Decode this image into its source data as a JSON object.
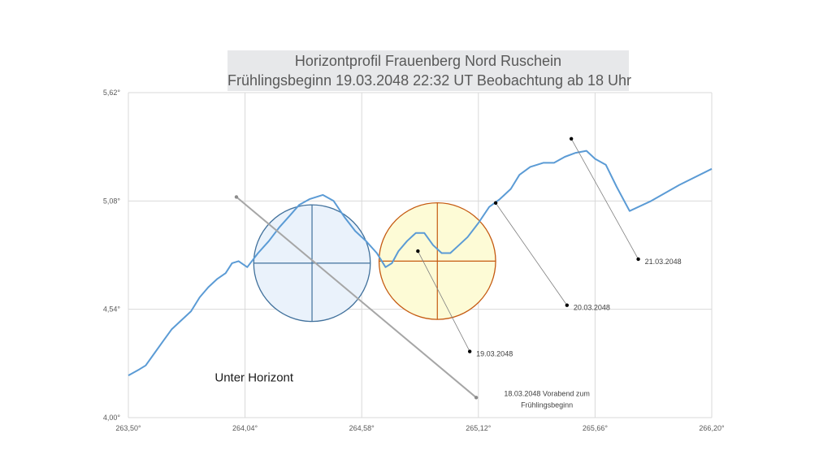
{
  "chart_data": {
    "type": "line",
    "title": "Horizontprofil Frauenberg Nord Ruschein",
    "subtitle": "Frühlingsbeginn 19.03.2048   22:32 UT Beobachtung ab 18 Uhr",
    "xlabel": "",
    "ylabel": "",
    "xlim": [
      263.5,
      266.2
    ],
    "ylim": [
      4.0,
      5.62
    ],
    "x_ticks": [
      "263,50°",
      "264,04°",
      "264,58°",
      "265,12°",
      "265,66°",
      "266,20°"
    ],
    "y_ticks": [
      "4,00°",
      "4,54°",
      "5,08°",
      "5,62°"
    ],
    "x_tick_values": [
      263.5,
      264.04,
      264.58,
      265.12,
      265.66,
      266.2
    ],
    "y_tick_values": [
      4.0,
      4.54,
      5.08,
      5.62
    ],
    "grid": true,
    "legend": "none",
    "colors": {
      "horizon": "#5b9bd5",
      "circle_blue_stroke": "#41719c",
      "circle_blue_fill": "#eaf2fb",
      "circle_orange_stroke": "#c55a11",
      "circle_orange_fill": "#fdfbd6",
      "grid": "#d9d9d9",
      "leader": "#a6a6a6"
    },
    "series": [
      {
        "points": [
          [
            263.5,
            4.21
          ],
          [
            263.55,
            4.24
          ],
          [
            263.58,
            4.26
          ],
          [
            263.62,
            4.32
          ],
          [
            263.66,
            4.38
          ],
          [
            263.7,
            4.44
          ],
          [
            263.74,
            4.48
          ],
          [
            263.79,
            4.53
          ],
          [
            263.83,
            4.6
          ],
          [
            263.87,
            4.65
          ],
          [
            263.91,
            4.69
          ],
          [
            263.95,
            4.72
          ],
          [
            263.98,
            4.77
          ],
          [
            264.01,
            4.78
          ],
          [
            264.05,
            4.75
          ],
          [
            264.1,
            4.82
          ],
          [
            264.15,
            4.88
          ],
          [
            264.2,
            4.95
          ],
          [
            264.25,
            5.01
          ],
          [
            264.29,
            5.06
          ],
          [
            264.34,
            5.09
          ],
          [
            264.4,
            5.11
          ],
          [
            264.45,
            5.08
          ],
          [
            264.5,
            5.0
          ],
          [
            264.55,
            4.93
          ],
          [
            264.6,
            4.88
          ],
          [
            264.65,
            4.82
          ],
          [
            264.69,
            4.75
          ],
          [
            264.72,
            4.77
          ],
          [
            264.75,
            4.83
          ],
          [
            264.79,
            4.88
          ],
          [
            264.83,
            4.92
          ],
          [
            264.87,
            4.92
          ],
          [
            264.91,
            4.86
          ],
          [
            264.95,
            4.82
          ],
          [
            264.99,
            4.82
          ],
          [
            265.03,
            4.86
          ],
          [
            265.07,
            4.9
          ],
          [
            265.12,
            4.97
          ],
          [
            265.17,
            5.05
          ],
          [
            265.22,
            5.09
          ],
          [
            265.27,
            5.14
          ],
          [
            265.31,
            5.21
          ],
          [
            265.36,
            5.25
          ],
          [
            265.42,
            5.27
          ],
          [
            265.47,
            5.27
          ],
          [
            265.52,
            5.3
          ],
          [
            265.57,
            5.32
          ],
          [
            265.62,
            5.33
          ],
          [
            265.66,
            5.29
          ],
          [
            265.71,
            5.26
          ],
          [
            265.76,
            5.15
          ],
          [
            265.82,
            5.03
          ],
          [
            265.92,
            5.08
          ],
          [
            266.05,
            5.16
          ],
          [
            266.2,
            5.24
          ]
        ]
      }
    ],
    "circles": [
      {
        "name": "blue",
        "center_x": 264.35,
        "center_y": 4.77,
        "radius_x": 0.275,
        "radius_y": 0.285
      },
      {
        "name": "orange",
        "center_x": 264.93,
        "center_y": 4.78,
        "radius_x": 0.275,
        "radius_y": 0.285
      }
    ],
    "annotations": [
      {
        "text_lines": [
          "21.03.2048"
        ],
        "from": [
          265.55,
          5.39
        ],
        "to": [
          265.86,
          4.79
        ]
      },
      {
        "text_lines": [
          "20.03.2048"
        ],
        "from": [
          265.2,
          5.07
        ],
        "to": [
          265.53,
          4.56
        ]
      },
      {
        "text_lines": [
          "19.03.2048"
        ],
        "from": [
          264.84,
          4.83
        ],
        "to": [
          265.08,
          4.33
        ]
      },
      {
        "text_lines": [
          "18.03.2048 Vorabend zum",
          "Frühlingsbeginn"
        ],
        "from": [
          264.0,
          5.1
        ],
        "to": [
          265.11,
          4.1
        ]
      },
      {
        "text_lines": [
          "Unter Horizont"
        ],
        "at": [
          263.9,
          4.2
        ]
      }
    ]
  }
}
